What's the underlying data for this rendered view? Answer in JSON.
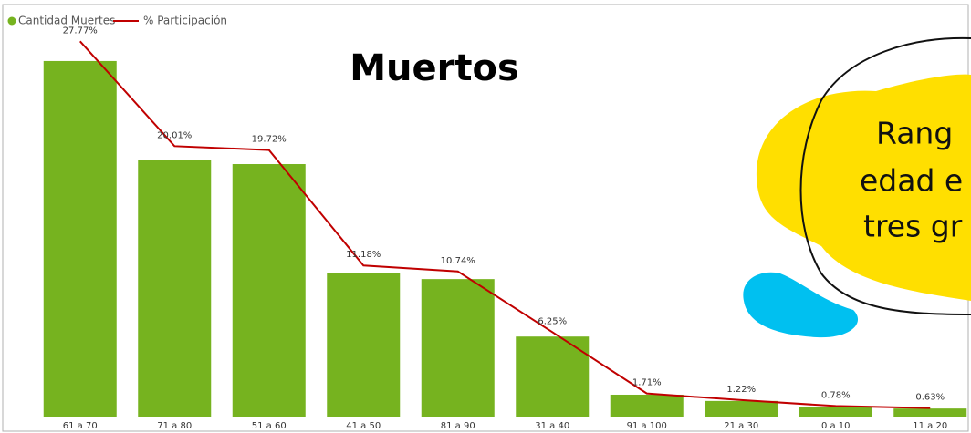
{
  "chart_data": {
    "type": "bar",
    "title": "Muertos",
    "categories": [
      "61 a 70",
      "71 a 80",
      "51 a 60",
      "41 a 50",
      "81 a 90",
      "31 a 40",
      "91 a 100",
      "21 a 30",
      "0 a 10",
      "11 a 20"
    ],
    "series": [
      {
        "name": "Cantidad Muertes",
        "color": "#76b31f",
        "type": "bar",
        "values": [
          27.77,
          20.01,
          19.72,
          11.18,
          10.74,
          6.25,
          1.71,
          1.22,
          0.78,
          0.63
        ]
      },
      {
        "name": "% Participación",
        "color": "#c00000",
        "type": "line",
        "axis": "y2",
        "values": [
          27.77,
          20.01,
          19.72,
          11.18,
          10.74,
          6.25,
          1.71,
          1.22,
          0.78,
          0.63
        ],
        "value_labels": [
          "27.77%",
          "20.01%",
          "19.72%",
          "11.18%",
          "10.74%",
          "6.25%",
          "1.71%",
          "1.22%",
          "0.78%",
          "0.63%"
        ]
      }
    ],
    "ylim": [
      0,
      30.4
    ],
    "y2lim": [
      0,
      28.8
    ],
    "annotation": [
      "Rang",
      "edad e",
      "tres gr"
    ]
  }
}
